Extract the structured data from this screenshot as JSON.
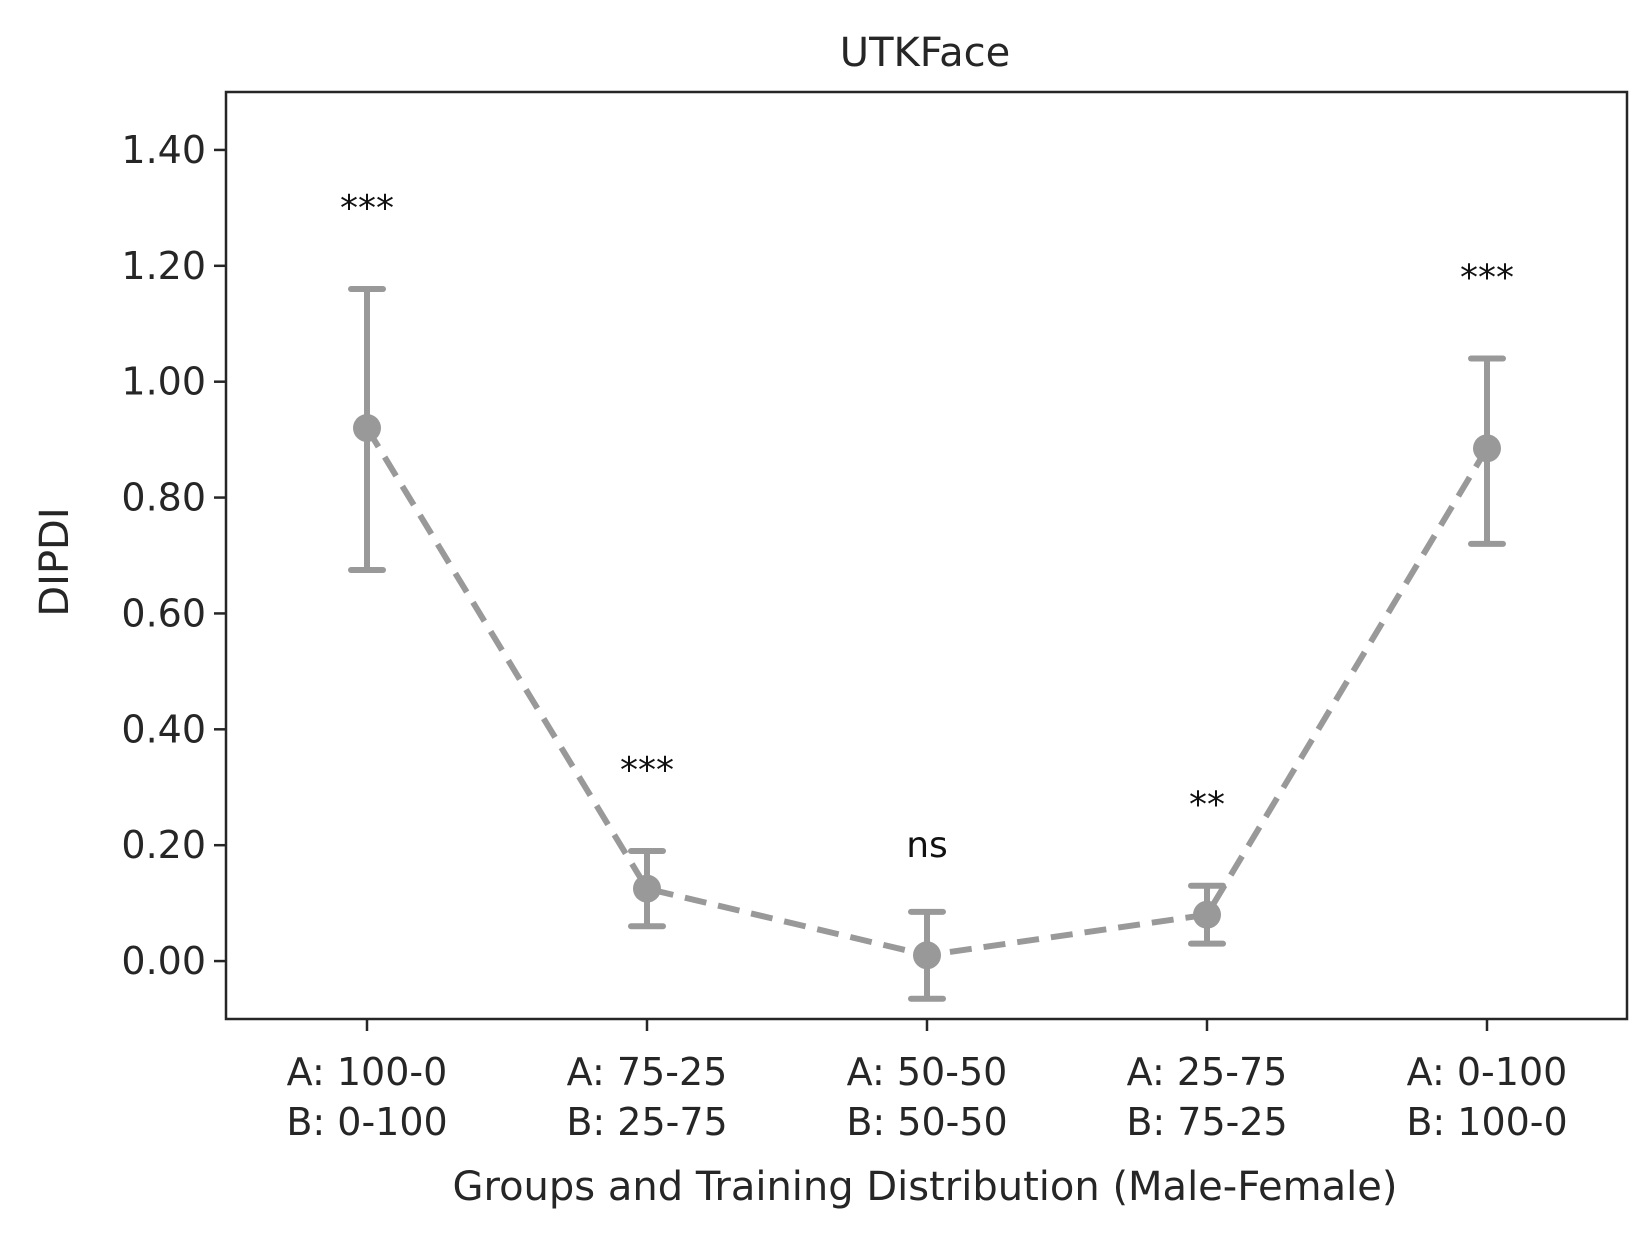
{
  "chart_data": {
    "type": "line",
    "title": "UTKFace",
    "xlabel": "Groups and Training Distribution (Male-Female)",
    "ylabel": "DIPDI",
    "ylim": [
      -0.1,
      1.5
    ],
    "yticks": [
      "0.00",
      "0.20",
      "0.40",
      "0.60",
      "0.80",
      "1.00",
      "1.20",
      "1.40"
    ],
    "ytick_values": [
      0.0,
      0.2,
      0.4,
      0.6,
      0.8,
      1.0,
      1.2,
      1.4
    ],
    "categories": [
      [
        "A: 100-0",
        "B: 0-100"
      ],
      [
        "A: 75-25",
        "B: 25-75"
      ],
      [
        "A: 50-50",
        "B: 50-50"
      ],
      [
        "A: 25-75",
        "B: 75-25"
      ],
      [
        "A: 0-100",
        "B: 100-0"
      ]
    ],
    "series": [
      {
        "values": [
          0.92,
          0.125,
          0.01,
          0.08,
          0.885
        ],
        "err_low": [
          0.675,
          0.06,
          -0.065,
          0.03,
          0.72
        ],
        "err_high": [
          1.16,
          0.19,
          0.085,
          0.13,
          1.04
        ],
        "annotations": [
          "***",
          "***",
          "ns",
          "**",
          "***"
        ],
        "annotation_y": [
          1.3,
          0.33,
          0.2,
          0.27,
          1.18
        ]
      }
    ],
    "line_style": "dashed",
    "grid": false,
    "colors": {
      "series": "#999999",
      "axis": "#262626",
      "text": "#262626"
    }
  }
}
